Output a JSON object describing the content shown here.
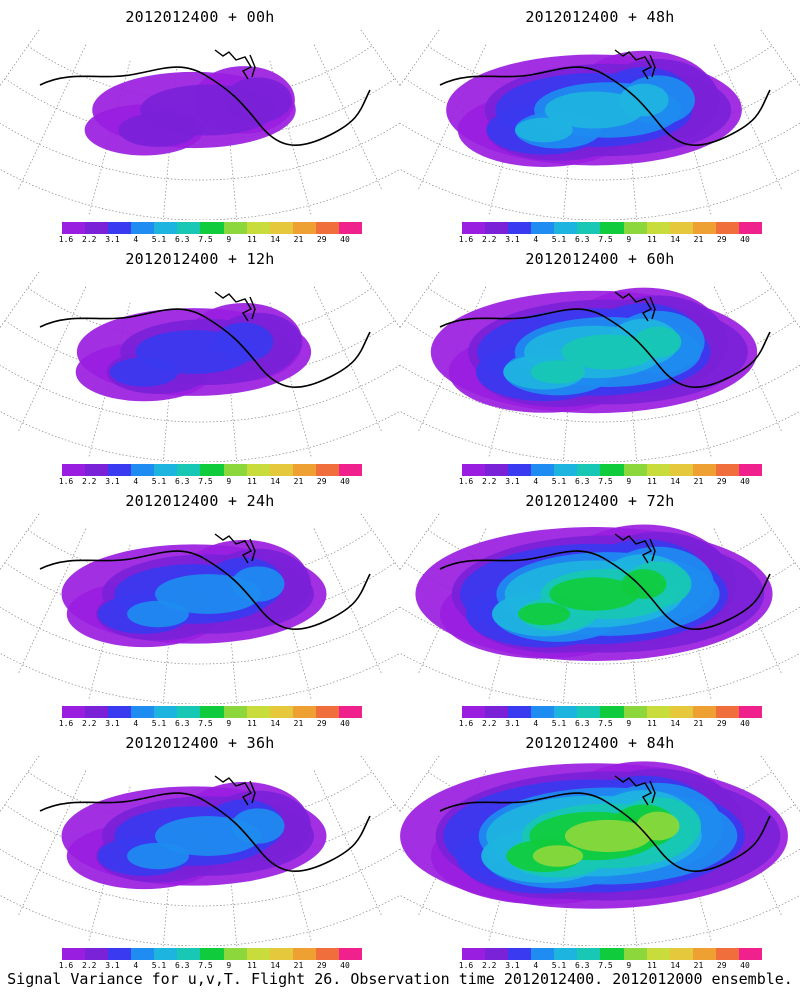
{
  "panels": [
    {
      "title": "2012012400 + 00h",
      "intensity": 1
    },
    {
      "title": "2012012400 + 48h",
      "intensity": 4
    },
    {
      "title": "2012012400 + 12h",
      "intensity": 2
    },
    {
      "title": "2012012400 + 60h",
      "intensity": 5
    },
    {
      "title": "2012012400 + 24h",
      "intensity": 3
    },
    {
      "title": "2012012400 + 72h",
      "intensity": 6
    },
    {
      "title": "2012012400 + 36h",
      "intensity": 3
    },
    {
      "title": "2012012400 + 84h",
      "intensity": 7
    }
  ],
  "colorbar": {
    "labels": [
      "1.6",
      "2.2",
      "3.1",
      "4",
      "5.1",
      "6.3",
      "7.5",
      "9",
      "11",
      "14",
      "21",
      "29",
      "40"
    ],
    "colors": [
      "#9a1ee0",
      "#7a22d8",
      "#3a3af0",
      "#1e8cf0",
      "#1eb4e0",
      "#18c8b4",
      "#10cc3c",
      "#8cd83c",
      "#c8dc3c",
      "#e6c83c",
      "#eea032",
      "#f06e3c",
      "#f0208c"
    ]
  },
  "footer": "Signal Variance for u,v,T. Flight 26. Observation time 2012012400. 2012012000 ensemble."
}
